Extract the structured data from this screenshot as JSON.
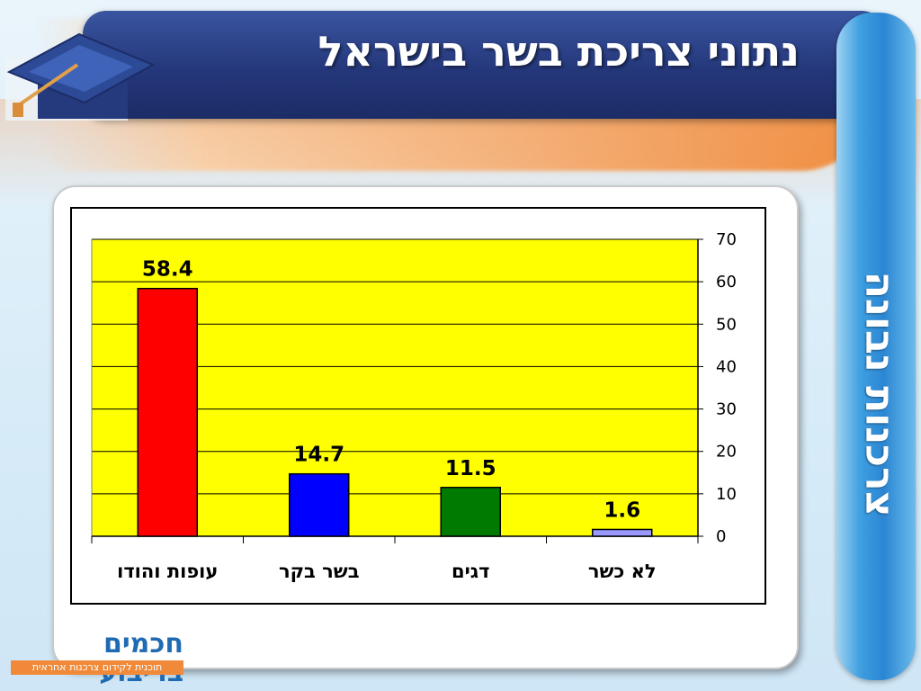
{
  "slide": {
    "title": "נתוני צריכת בשר בישראל",
    "side_label": "צרכנות נבונה"
  },
  "logo": {
    "name": "חכמים בריבוע",
    "tagline": "תוכנית לקידום צרכנות אחראית"
  },
  "colors": {
    "header": "#24377a",
    "plot_background": "#ffff00",
    "side_bar": "#2b86d3",
    "accent_orange": "#f08a3a"
  },
  "chart_data": {
    "type": "bar",
    "categories": [
      "עופות והודו",
      "בשר בקר",
      "דגים",
      "לא כשר"
    ],
    "values": [
      58.4,
      14.7,
      11.5,
      1.6
    ],
    "value_labels": [
      "58.4",
      "14.7",
      "11.5",
      "1.6"
    ],
    "bar_colors": [
      "#ff0000",
      "#0000ff",
      "#007a00",
      "#9999ff"
    ],
    "ylim": [
      0,
      70
    ],
    "yticks": [
      0,
      10,
      20,
      30,
      40,
      50,
      60,
      70
    ],
    "y_axis_side": "right",
    "grid": true,
    "legend": false,
    "title": "",
    "xlabel": "",
    "ylabel": ""
  }
}
